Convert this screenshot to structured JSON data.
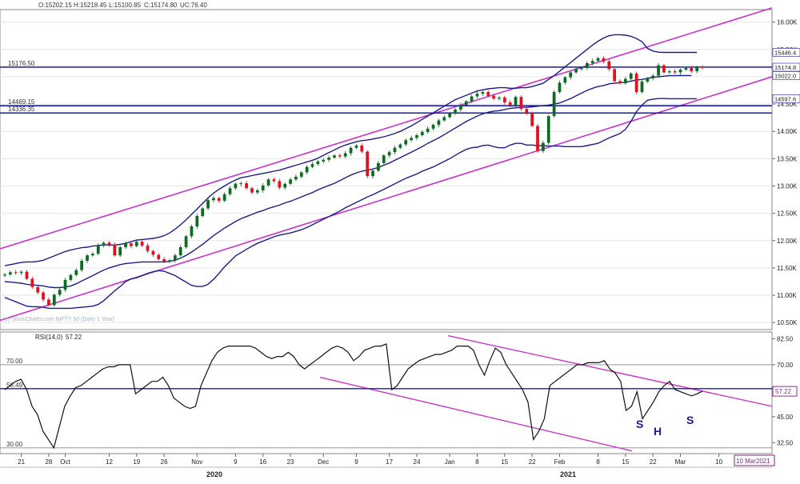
{
  "ohlc_readout": {
    "o": "O:15202.15",
    "h": "H:15218.45",
    "l": "L:15100.85",
    "c": "C:15174.80",
    "uc": "UC:76.40"
  },
  "watermark": "(c) StockCharts.com  NIFTY 50 (Daily 1 Year)",
  "date_box": "10 Mar2021",
  "years": [
    "2020",
    "2021"
  ],
  "colors": {
    "up": "#0c6b22",
    "down": "#e0101c",
    "band": "#1c1c8c",
    "channel": "#cc33cc",
    "hline": "#1a1aa8",
    "rsi": "#111111",
    "grid": "#b0b0b0"
  },
  "chart_data": [
    {
      "type": "candlestick",
      "ylim": [
        10400,
        16200
      ],
      "y_ticks": [
        "16.00K",
        "15.50K",
        "15.00K",
        "14.50K",
        "14.00K",
        "13.50K",
        "13.00K",
        "12.50K",
        "12.00K",
        "11.50K",
        "11.00K",
        "10.50K"
      ],
      "y_tick_values": [
        16000,
        15500,
        15000,
        14500,
        14000,
        13500,
        13000,
        12500,
        12000,
        11500,
        11000,
        10500
      ],
      "x_ticks": [
        "21",
        "28",
        "Oct",
        "12",
        "19",
        "26",
        "Nov",
        "9",
        "16",
        "23",
        "Dec",
        "9",
        "17",
        "24",
        "Jan",
        "8",
        "15",
        "22",
        "Feb",
        "8",
        "15",
        "22",
        "Mar",
        "10"
      ],
      "x_tick_index": [
        3,
        8,
        11,
        19,
        24,
        29,
        35,
        42,
        47,
        52,
        58,
        64,
        70,
        75,
        81,
        86,
        91,
        96,
        101,
        108,
        113,
        118,
        123,
        130
      ],
      "right_labels": [
        "15446.4",
        "15174.8",
        "15022.0",
        "14597.6"
      ],
      "right_label_values": [
        15446.4,
        15174.8,
        15022.0,
        14597.6
      ],
      "h_levels": [
        {
          "label": "15176.50",
          "value": 15176.5
        },
        {
          "label": "14469.15",
          "value": 14469.15
        },
        {
          "label": "14336.35",
          "value": 14336.35
        }
      ],
      "closes": [
        11380,
        11420,
        11410,
        11430,
        11300,
        11150,
        11050,
        10920,
        10820,
        11010,
        11100,
        11280,
        11370,
        11460,
        11630,
        11730,
        11760,
        11910,
        11960,
        11930,
        11730,
        11880,
        11950,
        11900,
        11980,
        11910,
        11810,
        11740,
        11660,
        11620,
        11640,
        11730,
        11880,
        12080,
        12260,
        12450,
        12590,
        12740,
        12780,
        12730,
        12850,
        12960,
        13040,
        13050,
        12960,
        12880,
        12920,
        13010,
        13120,
        13090,
        12970,
        13040,
        13120,
        13170,
        13250,
        13350,
        13400,
        13450,
        13480,
        13520,
        13560,
        13540,
        13600,
        13700,
        13740,
        13630,
        13180,
        13280,
        13420,
        13560,
        13620,
        13700,
        13760,
        13840,
        13880,
        13930,
        13990,
        14050,
        14120,
        14200,
        14260,
        14330,
        14400,
        14480,
        14550,
        14640,
        14690,
        14720,
        14650,
        14600,
        14620,
        14530,
        14470,
        14630,
        14410,
        14340,
        14100,
        13640,
        13790,
        14280,
        14720,
        14890,
        14990,
        15080,
        15140,
        15160,
        15250,
        15290,
        15340,
        15280,
        15140,
        14920,
        14880,
        14960,
        15060,
        14720,
        14910,
        14970,
        15020,
        15210,
        15080,
        15100,
        15080,
        15130,
        15160,
        15100,
        15180,
        15175
      ],
      "bollinger": {
        "upper": [
          11540,
          11560,
          11580,
          11600,
          11610,
          11610,
          11620,
          11640,
          11680,
          11720,
          11760,
          11800,
          11830,
          11850,
          11870,
          11880,
          11900,
          11910,
          11920,
          11920,
          11920,
          11930,
          11950,
          11980,
          12010,
          12020,
          12030,
          12040,
          12060,
          12090,
          12140,
          12210,
          12290,
          12380,
          12480,
          12580,
          12680,
          12780,
          12870,
          12940,
          13000,
          13060,
          13110,
          13150,
          13170,
          13190,
          13210,
          13230,
          13250,
          13270,
          13290,
          13320,
          13350,
          13380,
          13410,
          13440,
          13470,
          13510,
          13560,
          13610,
          13660,
          13710,
          13750,
          13780,
          13810,
          13830,
          13840,
          13860,
          13880,
          13900,
          13930,
          13960,
          14000,
          14050,
          14100,
          14160,
          14220,
          14280,
          14340,
          14400,
          14460,
          14520,
          14580,
          14620,
          14660,
          14700,
          14740,
          14760,
          14780,
          14790,
          14800,
          14800,
          14790,
          14790,
          14800,
          14800,
          14820,
          14850,
          14880,
          14950,
          15020,
          15100,
          15180,
          15260,
          15340,
          15420,
          15500,
          15580,
          15650,
          15710,
          15750,
          15770,
          15770,
          15760,
          15740,
          15700,
          15640,
          15520,
          15470,
          15450,
          15446,
          15446,
          15446,
          15446,
          15446,
          15446,
          15446
        ],
        "middle": [
          11250,
          11240,
          11230,
          11220,
          11200,
          11190,
          11180,
          11170,
          11150,
          11140,
          11140,
          11150,
          11170,
          11210,
          11260,
          11310,
          11360,
          11410,
          11460,
          11500,
          11530,
          11560,
          11580,
          11590,
          11600,
          11610,
          11610,
          11610,
          11610,
          11610,
          11620,
          11640,
          11680,
          11730,
          11790,
          11860,
          11930,
          12010,
          12090,
          12160,
          12230,
          12290,
          12350,
          12400,
          12440,
          12480,
          12520,
          12550,
          12590,
          12620,
          12650,
          12690,
          12720,
          12760,
          12800,
          12840,
          12880,
          12930,
          12970,
          13010,
          13050,
          13100,
          13150,
          13200,
          13240,
          13270,
          13290,
          13310,
          13340,
          13380,
          13420,
          13470,
          13520,
          13570,
          13620,
          13670,
          13720,
          13780,
          13830,
          13880,
          13940,
          14000,
          14060,
          14120,
          14180,
          14230,
          14280,
          14320,
          14350,
          14370,
          14380,
          14400,
          14420,
          14430,
          14440,
          14440,
          14450,
          14460,
          14470,
          14480,
          14500,
          14520,
          14560,
          14600,
          14650,
          14700,
          14750,
          14790,
          14820,
          14840,
          14870,
          14880,
          14890,
          14900,
          14920,
          14940,
          14950,
          14970,
          14990,
          15000,
          15010,
          15020,
          15020,
          15022,
          15022,
          15022
        ],
        "lower": [
          10960,
          10920,
          10880,
          10840,
          10800,
          10790,
          10790,
          10780,
          10760,
          10760,
          10760,
          10760,
          10760,
          10770,
          10780,
          10790,
          10800,
          10830,
          10900,
          10990,
          11080,
          11160,
          11250,
          11300,
          11320,
          11360,
          11400,
          11430,
          11450,
          11440,
          11400,
          11360,
          11300,
          11240,
          11180,
          11160,
          11160,
          11200,
          11290,
          11400,
          11520,
          11620,
          11720,
          11780,
          11840,
          11900,
          11950,
          11990,
          12030,
          12070,
          12100,
          12120,
          12140,
          12170,
          12200,
          12240,
          12290,
          12340,
          12390,
          12440,
          12490,
          12540,
          12600,
          12650,
          12700,
          12750,
          12800,
          12840,
          12890,
          12940,
          12990,
          13040,
          13090,
          13140,
          13180,
          13220,
          13270,
          13310,
          13350,
          13400,
          13450,
          13500,
          13560,
          13620,
          13670,
          13700,
          13710,
          13740,
          13750,
          13720,
          13700,
          13700,
          13750,
          13780,
          13780,
          13750,
          13750,
          13740,
          13740,
          13730,
          13730,
          13730,
          13720,
          13720,
          13720,
          13720,
          13740,
          13760,
          13780,
          13830,
          13880,
          13920,
          13960,
          14040,
          14180,
          14360,
          14480,
          14570,
          14590,
          14600,
          14600,
          14598,
          14598,
          14598,
          14598,
          14598,
          14598
        ]
      }
    },
    {
      "type": "line",
      "title": "RSI(14,0) 57.22",
      "legend_label": "RSI(14,0)",
      "legend_value": "57.22",
      "ylim": [
        28,
        85
      ],
      "y_ticks": [
        "82.50",
        "70.00",
        "57.50",
        "45.00",
        "32.50"
      ],
      "y_tick_values": [
        82.5,
        70,
        57.5,
        45,
        32.5
      ],
      "left_labels": [
        "70.00",
        "58.49",
        "30.00"
      ],
      "h_levels": [
        {
          "label": "70.00",
          "value": 70,
          "style": "thin"
        },
        {
          "label": "58.49",
          "value": 58.49,
          "style": "thick"
        },
        {
          "label": "30.00",
          "value": 30,
          "style": "thin"
        }
      ],
      "current_value": "57.22",
      "current_value_num": 57.22,
      "annotations": [
        "S",
        "H",
        "S"
      ],
      "values": [
        58,
        60,
        62,
        63,
        58,
        50,
        46,
        38,
        34,
        30,
        40,
        50,
        55,
        59,
        60,
        62,
        64,
        66,
        68,
        69,
        69,
        70,
        70,
        70,
        56,
        58,
        60,
        62,
        62,
        64,
        60,
        54,
        52,
        50,
        49,
        50,
        60,
        66,
        72,
        76,
        78,
        79,
        79,
        79,
        79,
        79,
        78,
        76,
        74,
        73,
        74,
        74,
        76,
        74,
        70,
        68,
        70,
        72,
        74,
        76,
        78,
        79,
        78,
        76,
        72,
        74,
        77,
        78,
        79,
        79,
        80,
        58,
        60,
        64,
        68,
        70,
        72,
        73,
        74,
        75,
        75,
        76,
        77,
        79,
        79,
        79,
        77,
        70,
        65,
        72,
        78,
        76,
        70,
        66,
        62,
        58,
        52,
        34,
        38,
        44,
        60,
        62,
        64,
        66,
        68,
        70,
        70,
        71,
        71,
        71,
        72,
        68,
        66,
        62,
        48,
        50,
        57,
        44,
        48,
        52,
        57,
        60,
        62,
        58,
        57,
        56,
        55,
        56,
        57.22
      ]
    }
  ]
}
